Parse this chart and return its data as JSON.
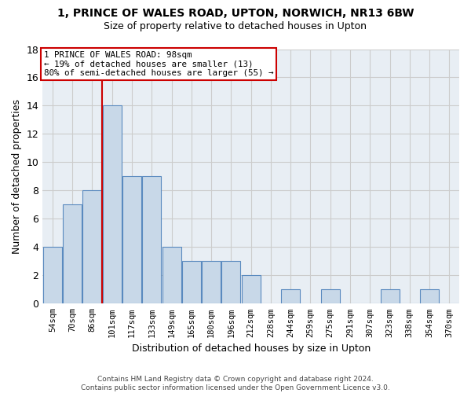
{
  "title": "1, PRINCE OF WALES ROAD, UPTON, NORWICH, NR13 6BW",
  "subtitle": "Size of property relative to detached houses in Upton",
  "xlabel": "Distribution of detached houses by size in Upton",
  "ylabel": "Number of detached properties",
  "bins": [
    "54sqm",
    "70sqm",
    "86sqm",
    "101sqm",
    "117sqm",
    "133sqm",
    "149sqm",
    "165sqm",
    "180sqm",
    "196sqm",
    "212sqm",
    "228sqm",
    "244sqm",
    "259sqm",
    "275sqm",
    "291sqm",
    "307sqm",
    "323sqm",
    "338sqm",
    "354sqm",
    "370sqm"
  ],
  "values": [
    4,
    7,
    8,
    14,
    9,
    9,
    4,
    3,
    3,
    3,
    2,
    0,
    1,
    0,
    1,
    0,
    0,
    1,
    0,
    1,
    0
  ],
  "bar_color": "#c8d8e8",
  "bar_edge_color": "#5a8abf",
  "grid_color": "#cccccc",
  "vline_color": "#cc0000",
  "vline_x_idx": 3,
  "annotation_line1": "1 PRINCE OF WALES ROAD: 98sqm",
  "annotation_line2": "← 19% of detached houses are smaller (13)",
  "annotation_line3": "80% of semi-detached houses are larger (55) →",
  "annotation_box_edgecolor": "#cc0000",
  "ylim": [
    0,
    18
  ],
  "yticks": [
    0,
    2,
    4,
    6,
    8,
    10,
    12,
    14,
    16,
    18
  ],
  "footnote_line1": "Contains HM Land Registry data © Crown copyright and database right 2024.",
  "footnote_line2": "Contains public sector information licensed under the Open Government Licence v3.0.",
  "bg_color": "#e8eef4"
}
